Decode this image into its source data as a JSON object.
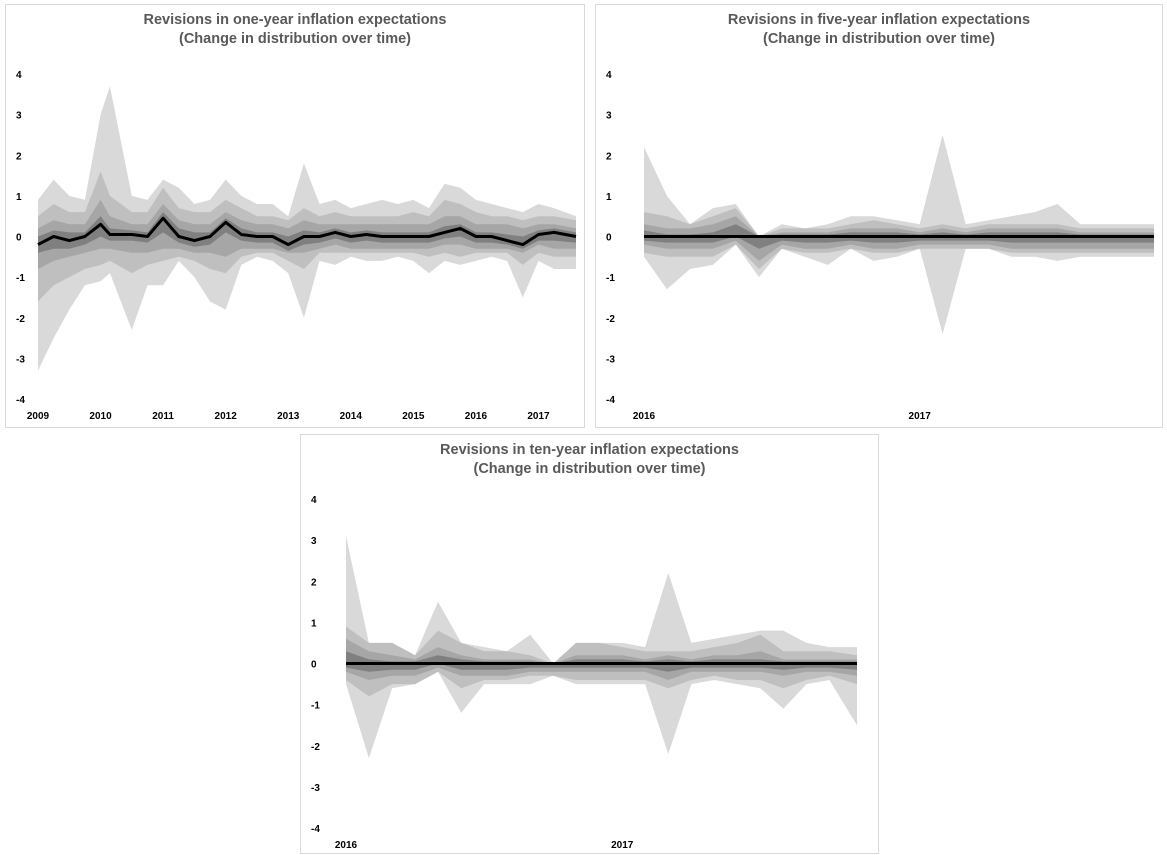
{
  "charts": [
    {
      "title": [
        "Revisions in one-year inflation expectations",
        "(Change in distribution over time)"
      ],
      "y_ticks": [
        "4",
        "3",
        "2",
        "1",
        "0",
        "-1",
        "-2",
        "-3",
        "-4"
      ],
      "x_ticks": [
        "2009",
        "2010",
        "2011",
        "2012",
        "2013",
        "2014",
        "2015",
        "2016",
        "2017"
      ]
    },
    {
      "title": [
        "Revisions in five-year inflation expectations",
        "(Change in distribution over time)"
      ],
      "y_ticks": [
        "4",
        "3",
        "2",
        "1",
        "0",
        "-1",
        "-2",
        "-3",
        "-4"
      ],
      "x_ticks": [
        "2016",
        "2017"
      ]
    },
    {
      "title": [
        "Revisions in ten-year inflation expectations",
        "(Change in distribution over time)"
      ],
      "y_ticks": [
        "4",
        "3",
        "2",
        "1",
        "0",
        "-1",
        "-2",
        "-3",
        "-4"
      ],
      "x_ticks": [
        "2016",
        "2017"
      ]
    }
  ],
  "chart_data": [
    {
      "type": "area",
      "title": "Revisions in one-year inflation expectations (Change in distribution over time)",
      "ylim": [
        -4,
        4
      ],
      "x_range": [
        2009.0,
        2017.6
      ],
      "x": [
        2009.0,
        2009.25,
        2009.5,
        2009.75,
        2010.0,
        2010.15,
        2010.5,
        2010.75,
        2011.0,
        2011.25,
        2011.5,
        2011.75,
        2012.0,
        2012.25,
        2012.5,
        2012.75,
        2013.0,
        2013.25,
        2013.5,
        2013.75,
        2014.0,
        2014.25,
        2014.5,
        2014.75,
        2015.0,
        2015.25,
        2015.5,
        2015.75,
        2016.0,
        2016.25,
        2016.5,
        2016.75,
        2017.0,
        2017.25,
        2017.6
      ],
      "median": [
        -0.2,
        0.0,
        -0.1,
        0.0,
        0.3,
        0.05,
        0.05,
        0.0,
        0.45,
        0.0,
        -0.1,
        0.0,
        0.35,
        0.05,
        0.0,
        0.0,
        -0.2,
        0.0,
        0.0,
        0.1,
        0.0,
        0.05,
        0.0,
        0.0,
        0.0,
        0.0,
        0.1,
        0.2,
        0.0,
        0.0,
        -0.1,
        -0.2,
        0.05,
        0.1,
        0.0
      ],
      "bands": [
        {
          "upper": [
            0.9,
            1.4,
            1.0,
            0.9,
            3.0,
            3.7,
            1.0,
            0.9,
            1.4,
            1.2,
            0.8,
            0.9,
            1.4,
            1.0,
            0.8,
            0.8,
            0.5,
            1.8,
            0.8,
            0.9,
            0.7,
            0.8,
            0.9,
            0.8,
            0.9,
            0.7,
            1.3,
            1.2,
            0.9,
            0.8,
            0.7,
            0.6,
            0.8,
            0.7,
            0.5
          ],
          "lower": [
            -3.3,
            -2.5,
            -1.8,
            -1.2,
            -1.1,
            -0.9,
            -2.3,
            -1.2,
            -1.2,
            -0.6,
            -1.0,
            -1.6,
            -1.8,
            -0.7,
            -0.5,
            -0.6,
            -0.9,
            -2.0,
            -0.6,
            -0.7,
            -0.5,
            -0.6,
            -0.6,
            -0.5,
            -0.6,
            -0.9,
            -0.6,
            -0.7,
            -0.6,
            -0.5,
            -0.6,
            -1.5,
            -0.6,
            -0.8,
            -0.8
          ]
        },
        {
          "upper": [
            0.5,
            0.8,
            0.6,
            0.6,
            1.6,
            1.0,
            0.6,
            0.6,
            1.2,
            0.7,
            0.6,
            0.6,
            0.9,
            0.7,
            0.5,
            0.5,
            0.4,
            0.7,
            0.5,
            0.6,
            0.5,
            0.5,
            0.5,
            0.5,
            0.6,
            0.5,
            0.9,
            0.8,
            0.6,
            0.5,
            0.5,
            0.4,
            0.5,
            0.5,
            0.4
          ],
          "lower": [
            -1.6,
            -1.2,
            -1.0,
            -0.8,
            -0.7,
            -0.6,
            -0.9,
            -0.7,
            -0.6,
            -0.5,
            -0.6,
            -0.8,
            -0.9,
            -0.5,
            -0.4,
            -0.4,
            -0.6,
            -0.8,
            -0.4,
            -0.4,
            -0.4,
            -0.4,
            -0.4,
            -0.4,
            -0.4,
            -0.5,
            -0.4,
            -0.5,
            -0.4,
            -0.4,
            -0.4,
            -0.7,
            -0.4,
            -0.5,
            -0.5
          ]
        },
        {
          "upper": [
            0.2,
            0.4,
            0.3,
            0.3,
            0.9,
            0.5,
            0.3,
            0.3,
            0.8,
            0.4,
            0.3,
            0.3,
            0.6,
            0.4,
            0.3,
            0.3,
            0.2,
            0.4,
            0.3,
            0.3,
            0.3,
            0.3,
            0.3,
            0.3,
            0.3,
            0.3,
            0.5,
            0.5,
            0.3,
            0.3,
            0.3,
            0.2,
            0.3,
            0.3,
            0.2
          ],
          "lower": [
            -0.8,
            -0.6,
            -0.5,
            -0.4,
            -0.3,
            -0.3,
            -0.4,
            -0.4,
            -0.3,
            -0.3,
            -0.4,
            -0.4,
            -0.5,
            -0.3,
            -0.3,
            -0.3,
            -0.4,
            -0.4,
            -0.3,
            -0.2,
            -0.3,
            -0.3,
            -0.3,
            -0.3,
            -0.3,
            -0.3,
            -0.2,
            -0.2,
            -0.3,
            -0.3,
            -0.3,
            -0.4,
            -0.2,
            -0.3,
            -0.3
          ]
        },
        {
          "upper": [
            0.0,
            0.15,
            0.1,
            0.1,
            0.5,
            0.2,
            0.15,
            0.1,
            0.6,
            0.2,
            0.1,
            0.1,
            0.45,
            0.2,
            0.1,
            0.1,
            0.0,
            0.15,
            0.1,
            0.2,
            0.1,
            0.15,
            0.1,
            0.1,
            0.1,
            0.1,
            0.25,
            0.3,
            0.1,
            0.1,
            0.05,
            0.0,
            0.15,
            0.2,
            0.1
          ],
          "lower": [
            -0.4,
            -0.3,
            -0.3,
            -0.2,
            0.0,
            -0.1,
            -0.1,
            -0.15,
            0.1,
            -0.15,
            -0.25,
            -0.2,
            0.1,
            -0.1,
            -0.15,
            -0.15,
            -0.35,
            -0.2,
            -0.15,
            -0.05,
            -0.15,
            -0.1,
            -0.15,
            -0.15,
            -0.15,
            -0.15,
            -0.05,
            0.0,
            -0.15,
            -0.15,
            -0.2,
            -0.3,
            -0.1,
            -0.1,
            -0.15
          ]
        }
      ]
    },
    {
      "type": "area",
      "title": "Revisions in five-year inflation expectations (Change in distribution over time)",
      "ylim": [
        -4,
        4
      ],
      "x_range": [
        2016.0,
        2017.85
      ],
      "x": [
        2016.0,
        2016.083,
        2016.167,
        2016.25,
        2016.333,
        2016.417,
        2016.5,
        2016.583,
        2016.667,
        2016.75,
        2016.833,
        2016.917,
        2017.0,
        2017.083,
        2017.167,
        2017.25,
        2017.333,
        2017.417,
        2017.5,
        2017.583,
        2017.667,
        2017.75,
        2017.85
      ],
      "median": [
        0,
        0,
        0,
        0,
        0,
        0,
        0,
        0,
        0,
        0,
        0,
        0,
        0,
        0,
        0,
        0,
        0,
        0,
        0,
        0,
        0,
        0,
        0
      ],
      "bands": [
        {
          "upper": [
            2.2,
            1.0,
            0.3,
            0.7,
            0.8,
            0.0,
            0.3,
            0.2,
            0.3,
            0.5,
            0.5,
            0.4,
            0.3,
            2.5,
            0.3,
            0.4,
            0.5,
            0.6,
            0.8,
            0.3,
            0.3,
            0.3,
            0.3
          ],
          "lower": [
            -0.5,
            -1.3,
            -0.8,
            -0.7,
            -0.2,
            -1.0,
            -0.3,
            -0.5,
            -0.7,
            -0.3,
            -0.6,
            -0.5,
            -0.3,
            -2.4,
            -0.3,
            -0.3,
            -0.5,
            -0.5,
            -0.6,
            -0.5,
            -0.5,
            -0.5,
            -0.5
          ]
        },
        {
          "upper": [
            0.6,
            0.5,
            0.3,
            0.5,
            0.7,
            0.0,
            0.2,
            0.2,
            0.2,
            0.3,
            0.4,
            0.3,
            0.2,
            0.3,
            0.2,
            0.3,
            0.3,
            0.3,
            0.3,
            0.2,
            0.2,
            0.2,
            0.2
          ],
          "lower": [
            -0.4,
            -0.5,
            -0.5,
            -0.5,
            -0.2,
            -0.8,
            -0.3,
            -0.4,
            -0.4,
            -0.3,
            -0.4,
            -0.4,
            -0.3,
            -0.3,
            -0.3,
            -0.3,
            -0.4,
            -0.4,
            -0.4,
            -0.4,
            -0.4,
            -0.4,
            -0.4
          ]
        },
        {
          "upper": [
            0.3,
            0.2,
            0.2,
            0.3,
            0.5,
            0.0,
            0.1,
            0.1,
            0.1,
            0.2,
            0.2,
            0.2,
            0.1,
            0.2,
            0.1,
            0.2,
            0.2,
            0.2,
            0.2,
            0.1,
            0.1,
            0.1,
            0.1
          ],
          "lower": [
            -0.2,
            -0.3,
            -0.3,
            -0.3,
            -0.1,
            -0.6,
            -0.2,
            -0.3,
            -0.3,
            -0.2,
            -0.3,
            -0.3,
            -0.2,
            -0.2,
            -0.2,
            -0.2,
            -0.3,
            -0.3,
            -0.3,
            -0.3,
            -0.3,
            -0.3,
            -0.3
          ]
        },
        {
          "upper": [
            0.15,
            0.05,
            0.05,
            0.1,
            0.3,
            0.0,
            0.05,
            0.05,
            0.05,
            0.1,
            0.1,
            0.1,
            0.05,
            0.1,
            0.05,
            0.1,
            0.1,
            0.1,
            0.1,
            0.05,
            0.05,
            0.05,
            0.05
          ],
          "lower": [
            -0.1,
            -0.15,
            -0.15,
            -0.15,
            0.0,
            -0.3,
            -0.1,
            -0.15,
            -0.15,
            -0.1,
            -0.15,
            -0.15,
            -0.1,
            -0.1,
            -0.1,
            -0.1,
            -0.15,
            -0.15,
            -0.15,
            -0.15,
            -0.15,
            -0.15,
            -0.15
          ]
        }
      ]
    },
    {
      "type": "area",
      "title": "Revisions in ten-year inflation expectations (Change in distribution over time)",
      "ylim": [
        -4,
        4
      ],
      "x_range": [
        2016.0,
        2017.85
      ],
      "x": [
        2016.0,
        2016.083,
        2016.167,
        2016.25,
        2016.333,
        2016.417,
        2016.5,
        2016.583,
        2016.667,
        2016.75,
        2016.833,
        2016.917,
        2017.0,
        2017.083,
        2017.167,
        2017.25,
        2017.333,
        2017.417,
        2017.5,
        2017.583,
        2017.667,
        2017.75,
        2017.85
      ],
      "median": [
        0,
        0,
        0,
        0,
        0,
        0,
        0,
        0,
        0,
        0,
        0,
        0,
        0,
        0,
        0,
        0,
        0,
        0,
        0,
        0,
        0,
        0,
        0
      ],
      "bands": [
        {
          "upper": [
            3.1,
            0.5,
            0.5,
            0.2,
            1.5,
            0.5,
            0.4,
            0.3,
            0.7,
            0.0,
            0.5,
            0.5,
            0.5,
            0.4,
            2.2,
            0.5,
            0.6,
            0.7,
            0.8,
            0.8,
            0.5,
            0.4,
            0.4
          ],
          "lower": [
            -0.5,
            -2.3,
            -0.6,
            -0.5,
            -0.2,
            -1.2,
            -0.5,
            -0.5,
            -0.5,
            -0.3,
            -0.5,
            -0.5,
            -0.5,
            -0.5,
            -2.2,
            -0.5,
            -0.4,
            -0.5,
            -0.6,
            -1.1,
            -0.5,
            -0.4,
            -1.5
          ]
        },
        {
          "upper": [
            0.9,
            0.5,
            0.5,
            0.2,
            0.8,
            0.5,
            0.3,
            0.3,
            0.2,
            0.0,
            0.5,
            0.5,
            0.4,
            0.3,
            0.3,
            0.3,
            0.4,
            0.5,
            0.7,
            0.3,
            0.3,
            0.3,
            0.2
          ],
          "lower": [
            -0.4,
            -0.8,
            -0.5,
            -0.5,
            -0.2,
            -0.6,
            -0.4,
            -0.4,
            -0.3,
            -0.3,
            -0.4,
            -0.4,
            -0.4,
            -0.4,
            -0.6,
            -0.4,
            -0.3,
            -0.4,
            -0.4,
            -0.6,
            -0.4,
            -0.3,
            -0.5
          ]
        },
        {
          "upper": [
            0.6,
            0.3,
            0.2,
            0.1,
            0.4,
            0.2,
            0.1,
            0.1,
            0.1,
            0.0,
            0.2,
            0.2,
            0.2,
            0.1,
            0.2,
            0.1,
            0.2,
            0.2,
            0.3,
            0.1,
            0.1,
            0.1,
            0.1
          ],
          "lower": [
            -0.2,
            -0.4,
            -0.3,
            -0.3,
            -0.1,
            -0.3,
            -0.3,
            -0.3,
            -0.2,
            -0.2,
            -0.2,
            -0.2,
            -0.2,
            -0.2,
            -0.4,
            -0.2,
            -0.2,
            -0.2,
            -0.2,
            -0.3,
            -0.2,
            -0.2,
            -0.3
          ]
        },
        {
          "upper": [
            0.3,
            0.1,
            0.05,
            0.05,
            0.2,
            0.1,
            0.05,
            0.05,
            0.05,
            0.0,
            0.1,
            0.1,
            0.1,
            0.05,
            0.1,
            0.05,
            0.1,
            0.1,
            0.1,
            0.05,
            0.05,
            0.05,
            0.05
          ],
          "lower": [
            -0.1,
            -0.2,
            -0.15,
            -0.15,
            0.0,
            -0.15,
            -0.15,
            -0.15,
            -0.1,
            -0.1,
            -0.1,
            -0.1,
            -0.1,
            -0.1,
            -0.2,
            -0.1,
            -0.1,
            -0.1,
            -0.1,
            -0.15,
            -0.1,
            -0.1,
            -0.15
          ]
        }
      ]
    }
  ],
  "colors": {
    "bands": [
      "#d9d9d9",
      "#bfbfbf",
      "#a6a6a6",
      "#808080"
    ],
    "median": "#000000",
    "title": "#595959",
    "border": "#d9d9d9"
  }
}
